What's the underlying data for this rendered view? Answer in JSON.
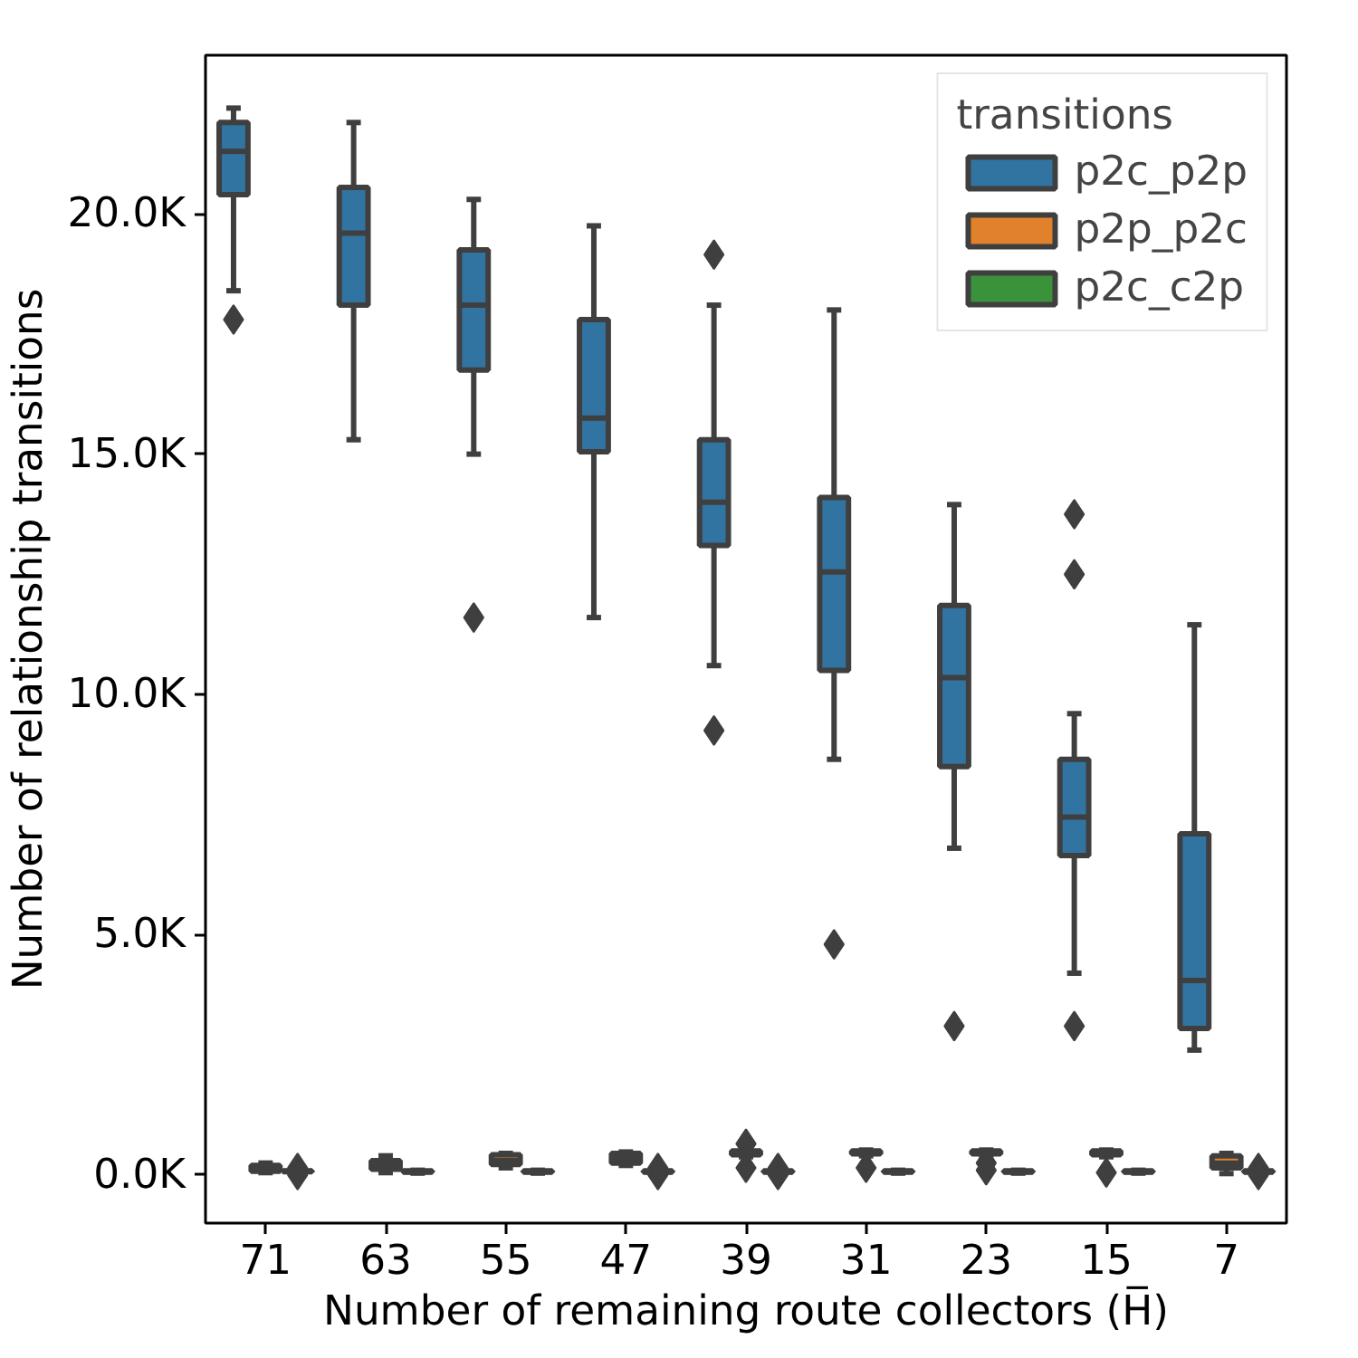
{
  "chart_data": {
    "type": "box",
    "xlabel": "Number of remaining route collectors (H̅)",
    "ylabel": "Number of relationship transitions",
    "categories": [
      "71",
      "63",
      "55",
      "47",
      "39",
      "31",
      "23",
      "15",
      "7"
    ],
    "ylim": [
      -1.0,
      23.3
    ],
    "yticks": [
      {
        "value": 0,
        "label": "0.0K"
      },
      {
        "value": 5,
        "label": "5.0K"
      },
      {
        "value": 10,
        "label": "10.0K"
      },
      {
        "value": 15,
        "label": "15.0K"
      },
      {
        "value": 20,
        "label": "20.0K"
      }
    ],
    "legend": "top right",
    "legend_title": "transitions",
    "grid": false,
    "series": [
      {
        "name": "p2c_p2p",
        "color": "#3274a1",
        "boxes": [
          {
            "low": 18.4,
            "q1": 20.4,
            "median": 21.3,
            "q3": 21.9,
            "high": 22.2,
            "outliers": [
              17.8
            ]
          },
          {
            "low": 15.3,
            "q1": 18.1,
            "median": 19.6,
            "q3": 20.55,
            "high": 21.9
          },
          {
            "low": 15.0,
            "q1": 16.75,
            "median": 18.1,
            "q3": 19.25,
            "high": 20.3,
            "outliers": [
              11.6
            ]
          },
          {
            "low": 11.6,
            "q1": 15.05,
            "median": 15.75,
            "q3": 17.8,
            "high": 19.75
          },
          {
            "low": 10.6,
            "q1": 13.1,
            "median": 14.0,
            "q3": 15.3,
            "high": 18.1,
            "outliers": [
              19.15,
              9.25
            ]
          },
          {
            "low": 8.65,
            "q1": 10.5,
            "median": 12.55,
            "q3": 14.1,
            "high": 18.0,
            "outliers": [
              4.8
            ]
          },
          {
            "low": 6.8,
            "q1": 8.5,
            "median": 10.35,
            "q3": 11.85,
            "high": 13.95,
            "outliers": [
              3.1
            ]
          },
          {
            "low": 4.2,
            "q1": 6.65,
            "median": 7.45,
            "q3": 8.65,
            "high": 9.6,
            "outliers": [
              13.75,
              12.5,
              3.1
            ]
          },
          {
            "low": 2.6,
            "q1": 3.05,
            "median": 4.05,
            "q3": 7.1,
            "high": 11.45
          }
        ]
      },
      {
        "name": "p2p_p2c",
        "color": "#e1812c",
        "boxes": [
          {
            "low": 0.05,
            "q1": 0.08,
            "median": 0.13,
            "q3": 0.2,
            "high": 0.25
          },
          {
            "low": 0.05,
            "q1": 0.12,
            "median": 0.22,
            "q3": 0.3,
            "high": 0.4
          },
          {
            "low": 0.15,
            "q1": 0.22,
            "median": 0.3,
            "q3": 0.42,
            "high": 0.45
          },
          {
            "low": 0.2,
            "q1": 0.25,
            "median": 0.35,
            "q3": 0.45,
            "high": 0.48
          },
          {
            "low": 0.38,
            "q1": 0.42,
            "median": 0.45,
            "q3": 0.5,
            "high": 0.52,
            "outliers": [
              0.65,
              0.15
            ]
          },
          {
            "low": 0.4,
            "q1": 0.44,
            "median": 0.47,
            "q3": 0.5,
            "high": 0.52,
            "outliers": [
              0.15
            ]
          },
          {
            "low": 0.4,
            "q1": 0.44,
            "median": 0.47,
            "q3": 0.5,
            "high": 0.52,
            "outliers": [
              0.25,
              0.1
            ]
          },
          {
            "low": 0.38,
            "q1": 0.42,
            "median": 0.45,
            "q3": 0.5,
            "high": 0.52,
            "outliers": [
              0.05
            ]
          },
          {
            "low": 0.03,
            "q1": 0.15,
            "median": 0.25,
            "q3": 0.4,
            "high": 0.45
          }
        ]
      },
      {
        "name": "p2c_c2p",
        "color": "#3a923a",
        "boxes": [
          {
            "low": 0.06,
            "q1": 0.07,
            "median": 0.08,
            "q3": 0.09,
            "high": 0.1,
            "outliers": [
              0.15,
              0.0
            ]
          },
          {
            "low": 0.04,
            "q1": 0.06,
            "median": 0.07,
            "q3": 0.09,
            "high": 0.1
          },
          {
            "low": 0.04,
            "q1": 0.06,
            "median": 0.07,
            "q3": 0.09,
            "high": 0.1
          },
          {
            "low": 0.04,
            "q1": 0.06,
            "median": 0.07,
            "q3": 0.09,
            "high": 0.1,
            "outliers": [
              0.15,
              0.0
            ]
          },
          {
            "low": 0.04,
            "q1": 0.06,
            "median": 0.07,
            "q3": 0.09,
            "high": 0.1,
            "outliers": [
              0.15,
              0.0
            ]
          },
          {
            "low": 0.04,
            "q1": 0.06,
            "median": 0.07,
            "q3": 0.09,
            "high": 0.1
          },
          {
            "low": 0.04,
            "q1": 0.06,
            "median": 0.07,
            "q3": 0.09,
            "high": 0.1
          },
          {
            "low": 0.04,
            "q1": 0.06,
            "median": 0.07,
            "q3": 0.09,
            "high": 0.1
          },
          {
            "low": 0.04,
            "q1": 0.06,
            "median": 0.07,
            "q3": 0.09,
            "high": 0.1,
            "outliers": [
              0.15,
              0.0
            ]
          }
        ]
      }
    ]
  }
}
